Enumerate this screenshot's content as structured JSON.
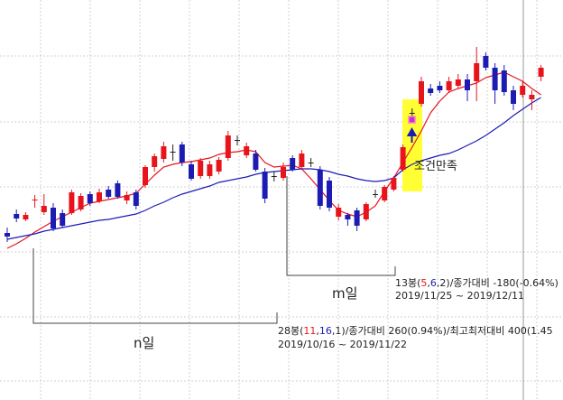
{
  "chart_data": {
    "type": "candlestick",
    "ylim": [
      0,
      443
    ],
    "up_color": "#e8141c",
    "down_color": "#1c1cb4",
    "open": [
      185,
      206,
      200,
      221,
      208,
      213,
      207,
      207,
      211,
      228,
      220,
      233,
      240,
      221,
      230,
      238,
      258,
      267,
      275,
      283,
      261,
      248,
      248,
      253,
      268,
      288,
      271,
      273,
      253,
      248,
      246,
      268,
      258,
      263,
      255,
      243,
      203,
      205,
      210,
      200,
      228,
      221,
      233,
      255,
      318,
      328,
      345,
      348,
      343,
      348,
      355,
      353,
      381,
      368,
      365,
      343,
      338,
      333,
      358
    ],
    "high": [
      191,
      211,
      208,
      227,
      228,
      218,
      211,
      233,
      229,
      231,
      234,
      237,
      243,
      231,
      233,
      260,
      273,
      286,
      283,
      286,
      265,
      268,
      265,
      269,
      298,
      293,
      285,
      277,
      257,
      253,
      263,
      271,
      277,
      268,
      259,
      247,
      217,
      207,
      213,
      219,
      233,
      238,
      248,
      283,
      323,
      358,
      350,
      353,
      358,
      361,
      361,
      391,
      385,
      373,
      371,
      348,
      353,
      343,
      371
    ],
    "low": [
      175,
      197,
      198,
      213,
      205,
      187,
      191,
      205,
      209,
      215,
      218,
      223,
      223,
      217,
      211,
      235,
      253,
      263,
      265,
      259,
      243,
      245,
      245,
      250,
      265,
      282,
      268,
      253,
      218,
      242,
      243,
      253,
      255,
      258,
      211,
      209,
      199,
      193,
      187,
      198,
      224,
      219,
      231,
      253,
      312,
      325,
      337,
      340,
      340,
      345,
      331,
      331,
      365,
      328,
      337,
      321,
      335,
      321,
      353
    ],
    "close": [
      181,
      201,
      205,
      222,
      215,
      190,
      193,
      230,
      226,
      218,
      230,
      225,
      225,
      227,
      215,
      258,
      270,
      281,
      275,
      263,
      245,
      265,
      261,
      266,
      293,
      288,
      281,
      255,
      223,
      248,
      258,
      255,
      273,
      263,
      215,
      213,
      213,
      200,
      193,
      217,
      228,
      236,
      246,
      280,
      318,
      353,
      340,
      343,
      353,
      355,
      343,
      373,
      368,
      343,
      341,
      328,
      348,
      338,
      368
    ],
    "moving_averages": [
      {
        "color": "#e8141c",
        "values": [
          168,
          173,
          179,
          186,
          192,
          198,
          203,
          208,
          213,
          218,
          220,
          222,
          224,
          226,
          229,
          239,
          249,
          258,
          261,
          263,
          264,
          266,
          268,
          272,
          274,
          275,
          277,
          275,
          263,
          258,
          259,
          260,
          256,
          245,
          233,
          221,
          210,
          206,
          203,
          208,
          215,
          231,
          246,
          263,
          280,
          298,
          318,
          331,
          341,
          345,
          348,
          351,
          357,
          360,
          363,
          358,
          353,
          345,
          338
        ]
      },
      {
        "color": "#1c1cb4",
        "values": [
          178,
          180,
          182,
          184,
          187,
          189,
          191,
          193,
          195,
          197,
          199,
          200,
          202,
          204,
          206,
          210,
          215,
          219,
          224,
          228,
          231,
          234,
          237,
          241,
          243,
          245,
          247,
          250,
          252,
          253,
          254,
          255,
          256,
          256,
          255,
          253,
          250,
          248,
          245,
          243,
          242,
          243,
          246,
          255,
          261,
          265,
          268,
          271,
          273,
          277,
          282,
          287,
          293,
          300,
          307,
          315,
          322,
          329,
          335
        ]
      }
    ],
    "annotations": {
      "signal": "조건만족",
      "m_label": "m일",
      "n_label": "n일",
      "m_stats": [
        "13봉(",
        "5",
        ",",
        "6",
        ",",
        "2",
        ")/종가대비 -180(-0.64%)"
      ],
      "m_dates": "2019/11/25 ~ 2019/12/11",
      "n_stats": [
        "28봉(",
        "11",
        ",",
        "16",
        ",",
        "1",
        ")/종가대비 260(0.94%)/최고최저대비 400(1.45"
      ],
      "n_dates": "2019/10/16 ~ 2019/11/22"
    }
  }
}
